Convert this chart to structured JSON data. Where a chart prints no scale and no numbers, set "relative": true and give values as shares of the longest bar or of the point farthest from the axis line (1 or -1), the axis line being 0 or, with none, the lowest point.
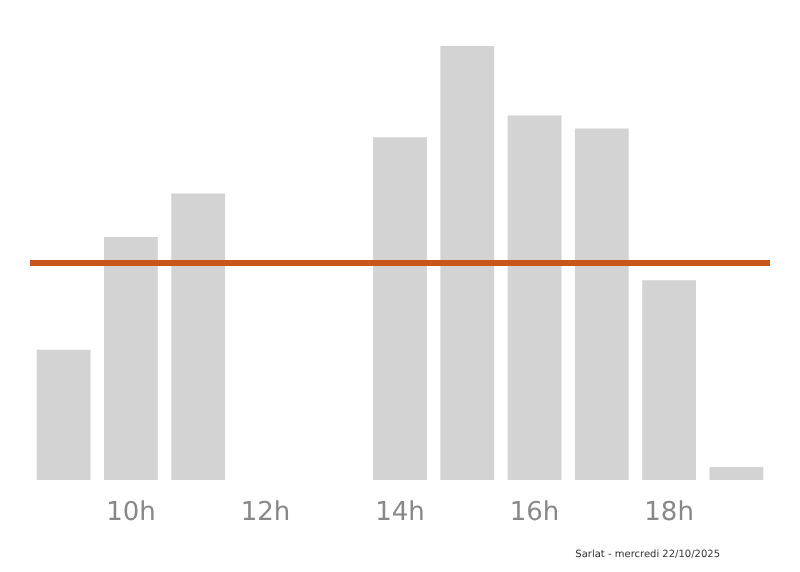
{
  "chart_data": {
    "type": "bar",
    "relative": true,
    "categories": [
      null,
      "10h",
      null,
      "12h",
      null,
      "14h",
      null,
      "16h",
      null,
      "18h",
      null
    ],
    "values": [
      0.3,
      0.56,
      0.66,
      0,
      0,
      0.79,
      1,
      0.84,
      0.81,
      0.46,
      0.03
    ],
    "color": "#d3d3d3",
    "ref_lines": [
      {
        "axis": "y",
        "value": 0.5,
        "color": "#c8561a",
        "line_style": "solid"
      }
    ],
    "annotations": [
      "Sarlat - mercredi 22/10/2025"
    ],
    "grid": false
  }
}
